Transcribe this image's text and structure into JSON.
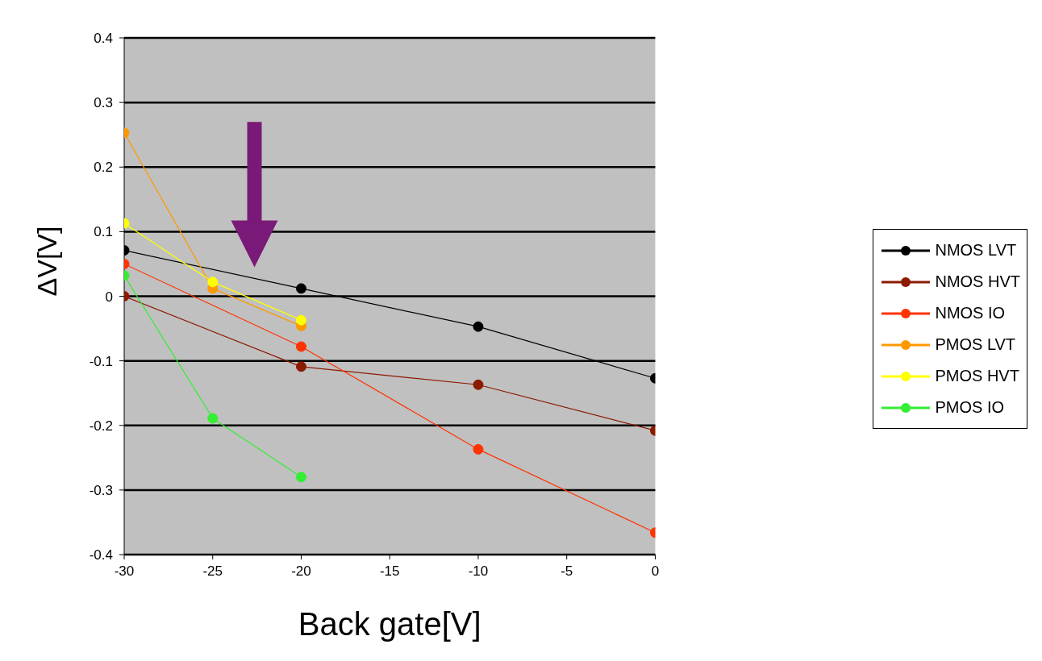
{
  "chart_data": {
    "type": "line",
    "xlabel": "Back gate[V]",
    "ylabel": "ΔV[V]",
    "xlim": [
      -30,
      0
    ],
    "xticks": [
      -30,
      -25,
      -20,
      -15,
      -10,
      -5,
      0
    ],
    "ylim": [
      -0.4,
      0.4
    ],
    "yticks": [
      -0.4,
      -0.3,
      -0.2,
      -0.1,
      0,
      0.1,
      0.2,
      0.3,
      0.4
    ],
    "grid": "y",
    "legend": "right",
    "marker": "circle",
    "line_style": "solid",
    "series": [
      {
        "name": "NMOS LVT",
        "color": "#000000",
        "x": [
          -30,
          -20,
          -10,
          0
        ],
        "values": [
          0.071,
          0.012,
          -0.047,
          -0.127
        ]
      },
      {
        "name": "NMOS HVT",
        "color": "#8b1a00",
        "x": [
          -30,
          -20,
          -10,
          0
        ],
        "values": [
          0,
          -0.109,
          -0.137,
          -0.208
        ]
      },
      {
        "name": "NMOS IO",
        "color": "#ff3300",
        "x": [
          -30,
          -20,
          -10,
          0
        ],
        "values": [
          0.05,
          -0.078,
          -0.237,
          -0.366
        ]
      },
      {
        "name": "PMOS LVT",
        "color": "#ff9900",
        "x": [
          -30,
          -25,
          -20
        ],
        "values": [
          0.253,
          0.012,
          -0.046
        ]
      },
      {
        "name": "PMOS HVT",
        "color": "#ffff00",
        "x": [
          -30,
          -25,
          -20
        ],
        "values": [
          0.113,
          0.022,
          -0.037
        ]
      },
      {
        "name": "PMOS IO",
        "color": "#33ee33",
        "x": [
          -30,
          -25,
          -20
        ],
        "values": [
          0.032,
          -0.189,
          -0.28
        ]
      }
    ]
  }
}
